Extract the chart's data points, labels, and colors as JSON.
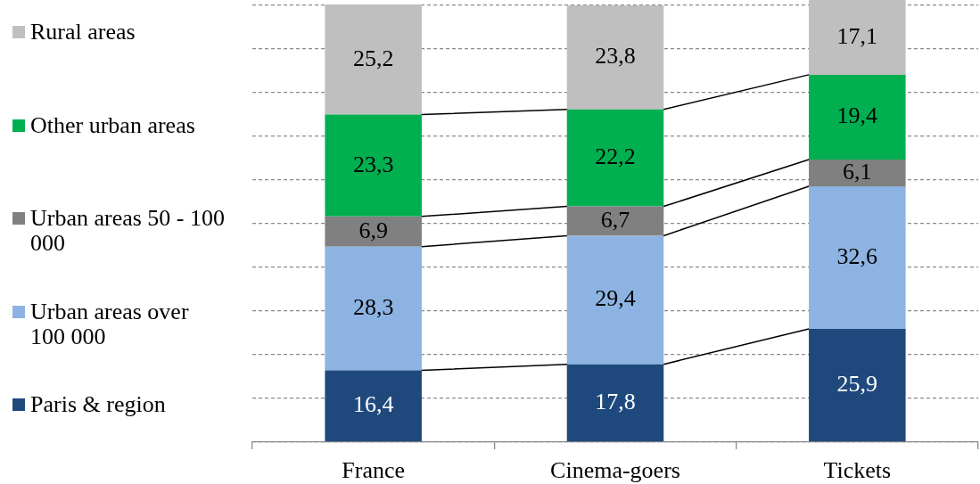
{
  "chart_data": {
    "type": "bar",
    "stacked": true,
    "categories": [
      "France",
      "Cinema-goers",
      "Tickets"
    ],
    "series": [
      {
        "name": "Paris & region",
        "color": "#1f497d",
        "values": [
          16.4,
          17.8,
          25.9
        ],
        "value_labels": [
          "16,4",
          "17,8",
          "25,9"
        ]
      },
      {
        "name": "Urban areas over 100 000",
        "color": "#8db3e2",
        "values": [
          28.3,
          29.4,
          32.6
        ],
        "value_labels": [
          "28,3",
          "29,4",
          "32,6"
        ]
      },
      {
        "name": "Urban areas 50 - 100 000",
        "color": "#808080",
        "values": [
          6.9,
          6.7,
          6.1
        ],
        "value_labels": [
          "6,9",
          "6,7",
          "6,1"
        ]
      },
      {
        "name": "Other urban areas",
        "color": "#00b050",
        "values": [
          23.3,
          22.2,
          19.4
        ],
        "value_labels": [
          "23,3",
          "22,2",
          "19,4"
        ]
      },
      {
        "name": "Rural areas",
        "color": "#bfbfbf",
        "values": [
          25.2,
          23.8,
          17.1
        ],
        "value_labels": [
          "25,2",
          "23,8",
          "17,1"
        ]
      }
    ],
    "yticks": [
      {
        "value": 0,
        "label": null
      },
      {
        "value": 10,
        "label": null
      },
      {
        "value": 20,
        "label": null
      },
      {
        "value": 30,
        "label": null
      },
      {
        "value": 40,
        "label": null
      },
      {
        "value": 50,
        "label": null
      },
      {
        "value": 60,
        "label": null
      },
      {
        "value": 70,
        "label": null
      },
      {
        "value": 80,
        "label": null
      },
      {
        "value": 90,
        "label": null
      },
      {
        "value": 100,
        "label": null
      }
    ],
    "grid": "y",
    "legend": "left",
    "tick_labels": "x"
  }
}
